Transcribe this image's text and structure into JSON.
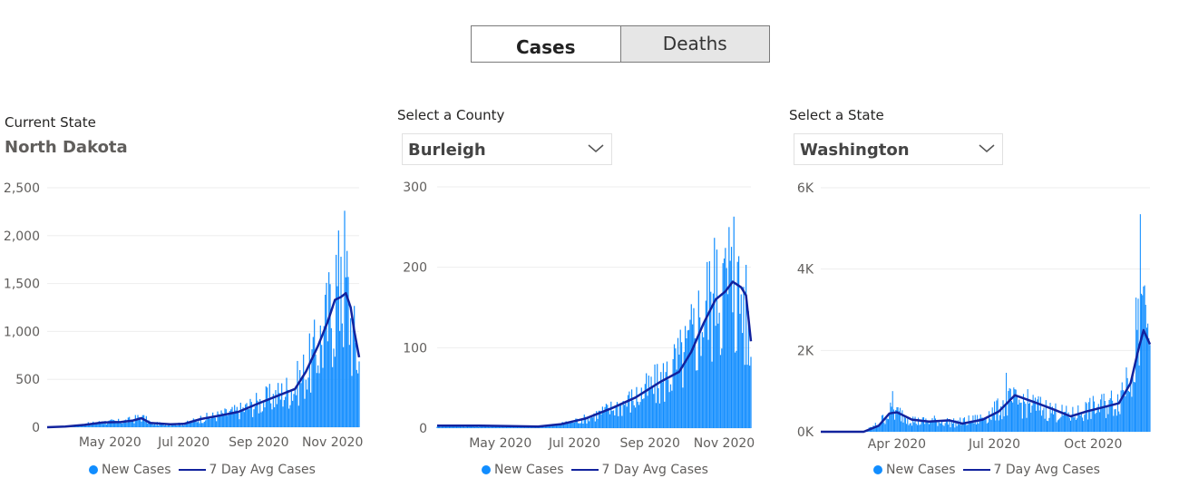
{
  "toggle": {
    "cases_label": "Cases",
    "deaths_label": "Deaths"
  },
  "panels": [
    {
      "label": "Current State",
      "name": "North Dakota"
    },
    {
      "label": "Select a County",
      "selected": "Burleigh"
    },
    {
      "label": "Select a State",
      "selected": "Washington"
    }
  ],
  "legend": {
    "bars": "New Cases",
    "line": "7 Day Avg Cases"
  },
  "colors": {
    "bars": "#118dff",
    "line": "#12239e",
    "grid": "#eeeeee"
  },
  "chart_data": [
    {
      "type": "bar",
      "title": "",
      "x_start": "2020-03-10",
      "x_end": "2020-11-23",
      "xticks": [
        {
          "date": "2020-05-01",
          "label": "May 2020"
        },
        {
          "date": "2020-07-01",
          "label": "Jul 2020"
        },
        {
          "date": "2020-09-01",
          "label": "Sep 2020"
        },
        {
          "date": "2020-11-01",
          "label": "Nov 2020"
        }
      ],
      "yticks": [
        {
          "v": 0,
          "label": "0"
        },
        {
          "v": 500,
          "label": "500"
        },
        {
          "v": 1000,
          "label": "1,000"
        },
        {
          "v": 1500,
          "label": "1,500"
        },
        {
          "v": 2000,
          "label": "2,000"
        },
        {
          "v": 2500,
          "label": "2,500"
        }
      ],
      "ylim": [
        0,
        2500
      ],
      "series": [
        {
          "name": "New Cases",
          "kind": "bar",
          "anchors": [
            [
              "2020-03-10",
              0
            ],
            [
              "2020-03-25",
              8
            ],
            [
              "2020-04-10",
              30
            ],
            [
              "2020-04-25",
              55
            ],
            [
              "2020-05-10",
              60
            ],
            [
              "2020-05-20",
              80
            ],
            [
              "2020-05-27",
              110
            ],
            [
              "2020-06-05",
              40
            ],
            [
              "2020-06-20",
              30
            ],
            [
              "2020-07-01",
              35
            ],
            [
              "2020-07-15",
              90
            ],
            [
              "2020-08-01",
              130
            ],
            [
              "2020-08-15",
              170
            ],
            [
              "2020-09-01",
              260
            ],
            [
              "2020-09-15",
              330
            ],
            [
              "2020-10-01",
              430
            ],
            [
              "2020-10-15",
              700
            ],
            [
              "2020-10-25",
              1000
            ],
            [
              "2020-11-05",
              1450
            ],
            [
              "2020-11-13",
              1500
            ],
            [
              "2020-11-17",
              1000
            ],
            [
              "2020-11-23",
              700
            ]
          ],
          "peaks": [
            [
              "2020-11-11",
              2260
            ],
            [
              "2020-11-04",
              1800
            ],
            [
              "2020-11-08",
              1780
            ]
          ]
        },
        {
          "name": "7 Day Avg Cases",
          "kind": "line",
          "points": [
            [
              "2020-03-10",
              0
            ],
            [
              "2020-03-25",
              8
            ],
            [
              "2020-04-10",
              25
            ],
            [
              "2020-04-25",
              50
            ],
            [
              "2020-05-10",
              55
            ],
            [
              "2020-05-20",
              70
            ],
            [
              "2020-05-27",
              95
            ],
            [
              "2020-06-03",
              45
            ],
            [
              "2020-06-20",
              30
            ],
            [
              "2020-07-01",
              35
            ],
            [
              "2020-07-15",
              85
            ],
            [
              "2020-08-01",
              125
            ],
            [
              "2020-08-15",
              160
            ],
            [
              "2020-09-01",
              250
            ],
            [
              "2020-09-15",
              320
            ],
            [
              "2020-10-01",
              400
            ],
            [
              "2020-10-10",
              580
            ],
            [
              "2020-10-20",
              850
            ],
            [
              "2020-10-28",
              1100
            ],
            [
              "2020-11-03",
              1330
            ],
            [
              "2020-11-08",
              1360
            ],
            [
              "2020-11-12",
              1400
            ],
            [
              "2020-11-16",
              1250
            ],
            [
              "2020-11-19",
              1000
            ],
            [
              "2020-11-23",
              730
            ]
          ]
        }
      ]
    },
    {
      "type": "bar",
      "title": "",
      "x_start": "2020-03-10",
      "x_end": "2020-11-23",
      "xticks": [
        {
          "date": "2020-05-01",
          "label": "May 2020"
        },
        {
          "date": "2020-07-01",
          "label": "Jul 2020"
        },
        {
          "date": "2020-09-01",
          "label": "Sep 2020"
        },
        {
          "date": "2020-11-01",
          "label": "Nov 2020"
        }
      ],
      "yticks": [
        {
          "v": 0,
          "label": "0"
        },
        {
          "v": 100,
          "label": "100"
        },
        {
          "v": 200,
          "label": "200"
        },
        {
          "v": 300,
          "label": "300"
        }
      ],
      "ylim": [
        0,
        300
      ],
      "series": [
        {
          "name": "New Cases",
          "kind": "bar",
          "anchors": [
            [
              "2020-03-10",
              3
            ],
            [
              "2020-04-15",
              3
            ],
            [
              "2020-06-01",
              2
            ],
            [
              "2020-06-20",
              5
            ],
            [
              "2020-07-10",
              12
            ],
            [
              "2020-08-01",
              25
            ],
            [
              "2020-08-20",
              38
            ],
            [
              "2020-09-10",
              58
            ],
            [
              "2020-10-01",
              95
            ],
            [
              "2020-10-15",
              150
            ],
            [
              "2020-10-30",
              180
            ],
            [
              "2020-11-10",
              175
            ],
            [
              "2020-11-17",
              165
            ],
            [
              "2020-11-23",
              90
            ]
          ],
          "peaks": [
            [
              "2020-11-09",
              263
            ],
            [
              "2020-10-26",
              222
            ],
            [
              "2020-11-05",
              250
            ]
          ]
        },
        {
          "name": "7 Day Avg Cases",
          "kind": "line",
          "points": [
            [
              "2020-03-10",
              3
            ],
            [
              "2020-04-15",
              3
            ],
            [
              "2020-06-01",
              2
            ],
            [
              "2020-06-20",
              5
            ],
            [
              "2020-07-10",
              12
            ],
            [
              "2020-08-01",
              25
            ],
            [
              "2020-08-20",
              38
            ],
            [
              "2020-09-10",
              58
            ],
            [
              "2020-09-25",
              70
            ],
            [
              "2020-10-05",
              95
            ],
            [
              "2020-10-15",
              130
            ],
            [
              "2020-10-25",
              160
            ],
            [
              "2020-11-02",
              170
            ],
            [
              "2020-11-08",
              182
            ],
            [
              "2020-11-15",
              175
            ],
            [
              "2020-11-19",
              165
            ],
            [
              "2020-11-23",
              108
            ]
          ]
        }
      ]
    },
    {
      "type": "bar",
      "title": "",
      "x_start": "2020-01-21",
      "x_end": "2020-11-23",
      "xticks": [
        {
          "date": "2020-04-01",
          "label": "Apr 2020"
        },
        {
          "date": "2020-07-01",
          "label": "Jul 2020"
        },
        {
          "date": "2020-10-01",
          "label": "Oct 2020"
        }
      ],
      "yticks": [
        {
          "v": 0,
          "label": "0K"
        },
        {
          "v": 2000,
          "label": "2K"
        },
        {
          "v": 4000,
          "label": "4K"
        },
        {
          "v": 6000,
          "label": "6K"
        }
      ],
      "ylim": [
        0,
        6000
      ],
      "series": [
        {
          "name": "New Cases",
          "kind": "bar",
          "anchors": [
            [
              "2020-01-21",
              0
            ],
            [
              "2020-03-01",
              0
            ],
            [
              "2020-03-15",
              200
            ],
            [
              "2020-03-25",
              500
            ],
            [
              "2020-04-05",
              450
            ],
            [
              "2020-04-20",
              250
            ],
            [
              "2020-05-10",
              280
            ],
            [
              "2020-05-25",
              220
            ],
            [
              "2020-06-15",
              300
            ],
            [
              "2020-07-01",
              500
            ],
            [
              "2020-07-15",
              750
            ],
            [
              "2020-08-01",
              700
            ],
            [
              "2020-08-20",
              550
            ],
            [
              "2020-09-10",
              400
            ],
            [
              "2020-09-25",
              550
            ],
            [
              "2020-10-10",
              650
            ],
            [
              "2020-10-25",
              800
            ],
            [
              "2020-11-05",
              1700
            ],
            [
              "2020-11-15",
              2500
            ],
            [
              "2020-11-23",
              2200
            ]
          ],
          "peaks": [
            [
              "2020-11-14",
              5350
            ],
            [
              "2020-11-18",
              3600
            ],
            [
              "2020-11-10",
              3300
            ],
            [
              "2020-07-12",
              1450
            ],
            [
              "2020-03-28",
              1000
            ]
          ]
        },
        {
          "name": "7 Day Avg Cases",
          "kind": "line",
          "points": [
            [
              "2020-01-21",
              0
            ],
            [
              "2020-03-01",
              0
            ],
            [
              "2020-03-15",
              150
            ],
            [
              "2020-03-25",
              450
            ],
            [
              "2020-04-01",
              480
            ],
            [
              "2020-04-15",
              300
            ],
            [
              "2020-05-01",
              250
            ],
            [
              "2020-05-20",
              280
            ],
            [
              "2020-06-01",
              200
            ],
            [
              "2020-06-20",
              300
            ],
            [
              "2020-07-05",
              500
            ],
            [
              "2020-07-20",
              900
            ],
            [
              "2020-08-05",
              750
            ],
            [
              "2020-08-25",
              550
            ],
            [
              "2020-09-10",
              380
            ],
            [
              "2020-09-25",
              500
            ],
            [
              "2020-10-10",
              600
            ],
            [
              "2020-10-25",
              700
            ],
            [
              "2020-11-05",
              1200
            ],
            [
              "2020-11-12",
              2000
            ],
            [
              "2020-11-17",
              2500
            ],
            [
              "2020-11-23",
              2150
            ]
          ]
        }
      ]
    }
  ]
}
